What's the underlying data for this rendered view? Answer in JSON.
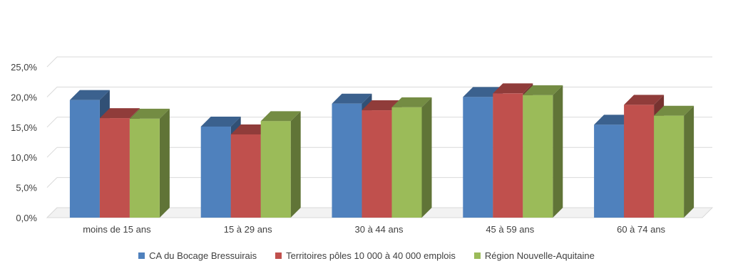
{
  "chart_data": {
    "type": "bar",
    "style": "3d-clustered-column",
    "categories": [
      "moins de 15 ans",
      "15 à 29 ans",
      "30 à 44 ans",
      "45 à 59 ans",
      "60 à 74 ans"
    ],
    "series": [
      {
        "name": "CA du Bocage Bressuirais",
        "color": "#4F81BD",
        "values": [
          19.5,
          15.1,
          18.9,
          20.0,
          15.4
        ]
      },
      {
        "name": "Territoires pôles 10 000 à 40 000 emplois",
        "color": "#C0504D",
        "values": [
          16.5,
          13.8,
          17.8,
          20.6,
          18.7
        ]
      },
      {
        "name": "Région Nouvelle-Aquitaine",
        "color": "#9BBB59",
        "values": [
          16.4,
          16.0,
          18.3,
          20.3,
          16.9
        ]
      }
    ],
    "y_ticks": [
      "0,0%",
      "5,0%",
      "10,0%",
      "15,0%",
      "20,0%",
      "25,0%"
    ],
    "ylim": [
      0,
      25
    ],
    "title": "",
    "xlabel": "",
    "ylabel": "",
    "grid": true,
    "legend_position": "bottom"
  }
}
